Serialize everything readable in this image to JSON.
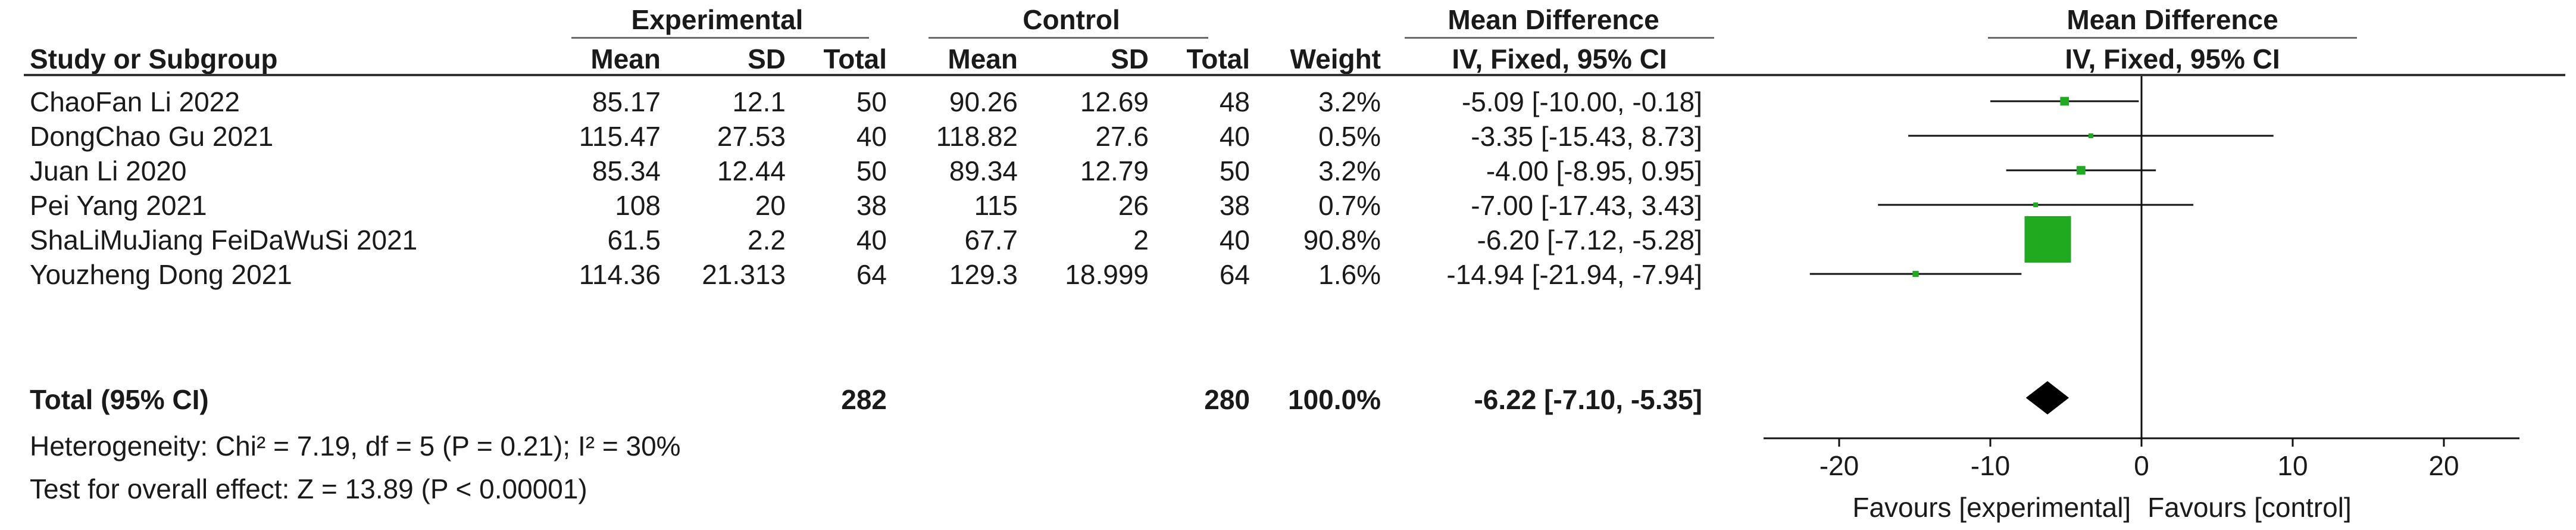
{
  "headers": {
    "experimental": "Experimental",
    "control": "Control",
    "mean_difference_left": "Mean Difference",
    "mean_difference_right": "Mean Difference",
    "study_or_subgroup": "Study or Subgroup",
    "exp_mean": "Mean",
    "exp_sd": "SD",
    "exp_total": "Total",
    "ctl_mean": "Mean",
    "ctl_sd": "SD",
    "ctl_total": "Total",
    "weight": "Weight",
    "method_left": "IV, Fixed, 95% CI",
    "method_right": "IV, Fixed, 95% CI"
  },
  "studies": [
    {
      "name": "ChaoFan Li 2022",
      "exp_mean": "85.17",
      "exp_sd": "12.1",
      "exp_total": "50",
      "ctl_mean": "90.26",
      "ctl_sd": "12.69",
      "ctl_total": "48",
      "weight": "3.2%",
      "ci_text": "-5.09 [-10.00, -0.18]"
    },
    {
      "name": "DongChao Gu  2021",
      "exp_mean": "115.47",
      "exp_sd": "27.53",
      "exp_total": "40",
      "ctl_mean": "118.82",
      "ctl_sd": "27.6",
      "ctl_total": "40",
      "weight": "0.5%",
      "ci_text": "-3.35 [-15.43, 8.73]"
    },
    {
      "name": "Juan Li  2020",
      "exp_mean": "85.34",
      "exp_sd": "12.44",
      "exp_total": "50",
      "ctl_mean": "89.34",
      "ctl_sd": "12.79",
      "ctl_total": "50",
      "weight": "3.2%",
      "ci_text": "-4.00 [-8.95, 0.95]"
    },
    {
      "name": "Pei Yang 2021",
      "exp_mean": "108",
      "exp_sd": "20",
      "exp_total": "38",
      "ctl_mean": "115",
      "ctl_sd": "26",
      "ctl_total": "38",
      "weight": "0.7%",
      "ci_text": "-7.00 [-17.43, 3.43]"
    },
    {
      "name": "ShaLiMuJiang FeiDaWuSi  2021",
      "exp_mean": "61.5",
      "exp_sd": "2.2",
      "exp_total": "40",
      "ctl_mean": "67.7",
      "ctl_sd": "2",
      "ctl_total": "40",
      "weight": "90.8%",
      "ci_text": "-6.20 [-7.12, -5.28]"
    },
    {
      "name": "Youzheng Dong 2021",
      "exp_mean": "114.36",
      "exp_sd": "21.313",
      "exp_total": "64",
      "ctl_mean": "129.3",
      "ctl_sd": "18.999",
      "ctl_total": "64",
      "weight": "1.6%",
      "ci_text": "-14.94 [-21.94, -7.94]"
    }
  ],
  "total": {
    "label": "Total (95% CI)",
    "exp_total": "282",
    "ctl_total": "280",
    "weight": "100.0%",
    "ci_text": "-6.22 [-7.10, -5.35]"
  },
  "heterogeneity": "Heterogeneity: Chi² = 7.19, df = 5 (P = 0.21); I² = 30%",
  "overall_effect": "Test for overall effect: Z = 13.89 (P < 0.00001)",
  "colors": {
    "study_marker": "#1faa1f",
    "ci_line": "#111111",
    "summary_diamond": "#000000"
  },
  "chart_data": {
    "type": "forest",
    "xlim": [
      -25,
      25
    ],
    "xticks": [
      -20,
      -10,
      0,
      10,
      20
    ],
    "xlabel_left": "Favours [experimental]",
    "xlabel_right": "Favours [control]",
    "studies": [
      {
        "name": "ChaoFan Li 2022",
        "md": -5.09,
        "lower": -10.0,
        "upper": -0.18,
        "weight": 3.2
      },
      {
        "name": "DongChao Gu  2021",
        "md": -3.35,
        "lower": -15.43,
        "upper": 8.73,
        "weight": 0.5
      },
      {
        "name": "Juan Li  2020",
        "md": -4.0,
        "lower": -8.95,
        "upper": 0.95,
        "weight": 3.2
      },
      {
        "name": "Pei Yang 2021",
        "md": -7.0,
        "lower": -17.43,
        "upper": 3.43,
        "weight": 0.7
      },
      {
        "name": "ShaLiMuJiang FeiDaWuSi  2021",
        "md": -6.2,
        "lower": -7.12,
        "upper": -5.28,
        "weight": 90.8
      },
      {
        "name": "Youzheng Dong 2021",
        "md": -14.94,
        "lower": -21.94,
        "upper": -7.94,
        "weight": 1.6
      }
    ],
    "summary": {
      "md": -6.22,
      "lower": -7.1,
      "upper": -5.35
    }
  }
}
